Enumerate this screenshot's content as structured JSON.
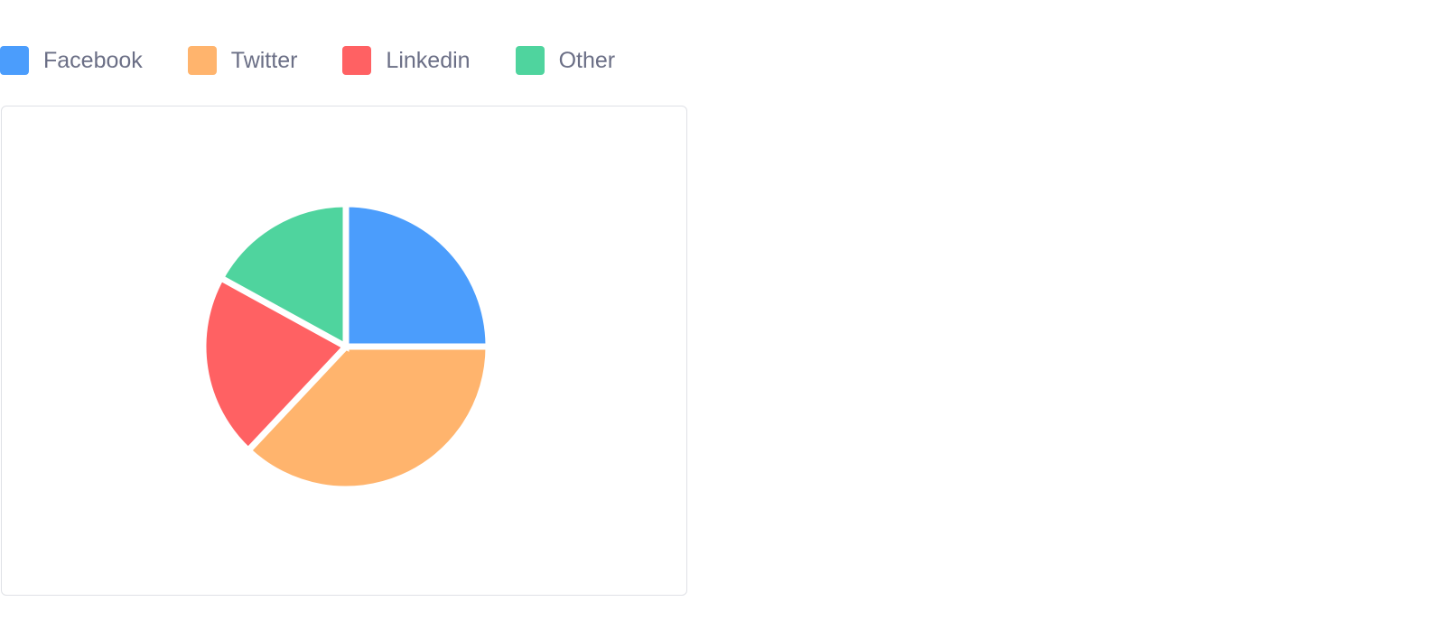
{
  "chart_data": {
    "type": "pie",
    "categories": [
      "Facebook",
      "Twitter",
      "Linkedin",
      "Other"
    ],
    "values": [
      25,
      37,
      21,
      17
    ],
    "colors": [
      "#4b9dfc",
      "#ffb46d",
      "#ff6163",
      "#4fd49e"
    ],
    "start_angle": "top",
    "direction": "clockwise",
    "legend_placement": "top-left"
  }
}
